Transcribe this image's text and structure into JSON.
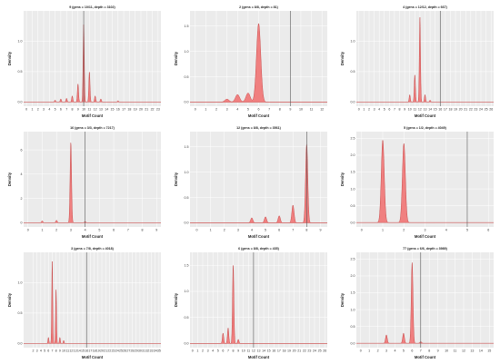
{
  "colors": {
    "fill": "#f08080",
    "stroke": "#c84a4a",
    "panel_bg": "#ebebeb",
    "grid": "#ffffff",
    "vline": "#555555"
  },
  "chart_data": [
    {
      "type": "area",
      "title": "9 (gens = 10/11, depth = 3102)",
      "xlabel": "Motif Count",
      "ylabel": "Density",
      "xlim": [
        -0.5,
        23.5
      ],
      "ylim": [
        -0.07,
        1.5
      ],
      "xticks": [
        0,
        1,
        2,
        3,
        4,
        5,
        6,
        7,
        8,
        9,
        10,
        11,
        12,
        13,
        14,
        15,
        16,
        17,
        18,
        19,
        20,
        21,
        22,
        23
      ],
      "yticks": [
        0.0,
        0.5,
        1.0
      ],
      "grid": true,
      "sigma": 0.1,
      "peaks": [
        {
          "x": 5,
          "y": 0.03
        },
        {
          "x": 6,
          "y": 0.05
        },
        {
          "x": 7,
          "y": 0.06
        },
        {
          "x": 8,
          "y": 0.1
        },
        {
          "x": 9,
          "y": 0.3
        },
        {
          "x": 10,
          "y": 1.3
        },
        {
          "x": 11,
          "y": 0.5
        },
        {
          "x": 12,
          "y": 0.1
        },
        {
          "x": 13,
          "y": 0.05
        },
        {
          "x": 16,
          "y": 0.02
        }
      ],
      "vline": 10
    },
    {
      "type": "area",
      "title": "2 (gens = 8/8, depth = 81)",
      "xlabel": "Motif Count",
      "ylabel": "Density",
      "xlim": [
        -0.5,
        12.5
      ],
      "ylim": [
        -0.08,
        1.8
      ],
      "xticks": [
        0,
        1,
        2,
        3,
        4,
        5,
        6,
        7,
        8,
        9,
        10,
        11,
        12
      ],
      "yticks": [
        0.0,
        0.5,
        1.0,
        1.5
      ],
      "grid": true,
      "sigma": 0.2,
      "peaks": [
        {
          "x": 3,
          "y": 0.06
        },
        {
          "x": 4,
          "y": 0.15
        },
        {
          "x": 5,
          "y": 0.18
        },
        {
          "x": 6,
          "y": 1.55
        }
      ],
      "vline": 9
    },
    {
      "type": "area",
      "title": "4 (gens = 12/12, depth = 667)",
      "xlabel": "Motif Count",
      "ylabel": "Density",
      "xlim": [
        -0.5,
        26.5
      ],
      "ylim": [
        -0.07,
        1.5
      ],
      "xticks": [
        0,
        1,
        2,
        3,
        4,
        5,
        6,
        7,
        8,
        9,
        10,
        11,
        12,
        13,
        14,
        15,
        16,
        17,
        18,
        19,
        20,
        21,
        22,
        23,
        24,
        25,
        26
      ],
      "yticks": [
        0.0,
        0.5,
        1.0
      ],
      "grid": true,
      "sigma": 0.11,
      "peaks": [
        {
          "x": 10,
          "y": 0.12
        },
        {
          "x": 11,
          "y": 0.45
        },
        {
          "x": 12,
          "y": 1.4
        },
        {
          "x": 13,
          "y": 0.12
        },
        {
          "x": 14,
          "y": 0.03
        }
      ],
      "vline": 16
    },
    {
      "type": "area",
      "title": "16 (gens = 3/3, depth = 7217)",
      "xlabel": "Motif Count",
      "ylabel": "Density",
      "xlim": [
        -0.3,
        9.3
      ],
      "ylim": [
        -0.35,
        7.5
      ],
      "xticks": [
        0,
        1,
        2,
        3,
        4,
        5,
        6,
        7,
        8,
        9
      ],
      "yticks": [
        0,
        2,
        4,
        6
      ],
      "grid": true,
      "sigma": 0.05,
      "peaks": [
        {
          "x": 1,
          "y": 0.15
        },
        {
          "x": 2,
          "y": 0.2
        },
        {
          "x": 3,
          "y": 6.6
        },
        {
          "x": 4,
          "y": 0.1
        }
      ],
      "vline": 4
    },
    {
      "type": "area",
      "title": "12 (gens = 8/8, depth = 3561)",
      "xlabel": "Motif Count",
      "ylabel": "Density",
      "xlim": [
        -0.5,
        9.5
      ],
      "ylim": [
        -0.08,
        1.8
      ],
      "xticks": [
        0,
        1,
        2,
        3,
        4,
        5,
        6,
        7,
        8,
        9
      ],
      "yticks": [
        0.0,
        0.5,
        1.0,
        1.5
      ],
      "grid": true,
      "sigma": 0.08,
      "peaks": [
        {
          "x": 4,
          "y": 0.1
        },
        {
          "x": 5,
          "y": 0.12
        },
        {
          "x": 6,
          "y": 0.14
        },
        {
          "x": 7,
          "y": 0.35
        },
        {
          "x": 8,
          "y": 1.55
        }
      ],
      "vline": 8
    },
    {
      "type": "area",
      "title": "5 (gens = 1/2, depth = 4049)",
      "xlabel": "Motif Count",
      "ylabel": "Density",
      "xlim": [
        -0.25,
        6.25
      ],
      "ylim": [
        -0.13,
        2.7
      ],
      "xticks": [
        0,
        1,
        2,
        3,
        4,
        5,
        6
      ],
      "yticks": [
        0.0,
        0.5,
        1.0,
        1.5,
        2.0,
        2.5
      ],
      "grid": true,
      "sigma": 0.07,
      "peaks": [
        {
          "x": 1,
          "y": 2.45
        },
        {
          "x": 2,
          "y": 2.35
        }
      ],
      "vline": 5
    },
    {
      "type": "area",
      "title": "3 (gens = 7/8, depth = 4018)",
      "xlabel": "Motif Count",
      "ylabel": "Density",
      "xlim": [
        -0.5,
        35.5
      ],
      "ylim": [
        -0.07,
        1.5
      ],
      "xticks": [
        2,
        3,
        4,
        5,
        6,
        7,
        8,
        9,
        10,
        11,
        12,
        13,
        14,
        15,
        16,
        17,
        18,
        19,
        20,
        21,
        22,
        23,
        24,
        25,
        26,
        27,
        28,
        29,
        30,
        31,
        32,
        33,
        34,
        35
      ],
      "yticks": [
        0.0,
        0.5,
        1.0
      ],
      "grid": true,
      "sigma": 0.12,
      "peaks": [
        {
          "x": 6,
          "y": 0.1
        },
        {
          "x": 7,
          "y": 1.35
        },
        {
          "x": 8,
          "y": 0.9
        },
        {
          "x": 9,
          "y": 0.1
        },
        {
          "x": 10,
          "y": 0.05
        }
      ],
      "vline": 16
    },
    {
      "type": "area",
      "title": "6 (gens = 8/8, depth = 435)",
      "xlabel": "Motif Count",
      "ylabel": "Density",
      "xlim": [
        -0.5,
        26.5
      ],
      "ylim": [
        -0.08,
        1.75
      ],
      "xticks": [
        0,
        1,
        2,
        3,
        4,
        5,
        6,
        7,
        8,
        9,
        10,
        11,
        12,
        13,
        14,
        15,
        16,
        17,
        18,
        19,
        20,
        21,
        22,
        23,
        24,
        25,
        26
      ],
      "yticks": [
        0.0,
        0.5,
        1.0,
        1.5
      ],
      "grid": true,
      "sigma": 0.13,
      "peaks": [
        {
          "x": 6,
          "y": 0.2
        },
        {
          "x": 7,
          "y": 0.3
        },
        {
          "x": 8,
          "y": 1.5
        },
        {
          "x": 9,
          "y": 0.08
        }
      ],
      "vline": 12
    },
    {
      "type": "area",
      "title": "77 (gens = 6/6, depth = 3989)",
      "xlabel": "Motif Count",
      "ylabel": "Density",
      "xlim": [
        -0.5,
        15.5
      ],
      "ylim": [
        -0.13,
        2.7
      ],
      "xticks": [
        0,
        1,
        2,
        3,
        4,
        5,
        6,
        7,
        8,
        9,
        10,
        11,
        12,
        13,
        14,
        15
      ],
      "yticks": [
        0.0,
        0.5,
        1.0,
        1.5,
        2.0,
        2.5
      ],
      "grid": true,
      "sigma": 0.1,
      "peaks": [
        {
          "x": 3,
          "y": 0.25
        },
        {
          "x": 5,
          "y": 0.3
        },
        {
          "x": 6,
          "y": 2.4
        },
        {
          "x": 7,
          "y": 0.05
        }
      ],
      "vline": 7
    }
  ]
}
